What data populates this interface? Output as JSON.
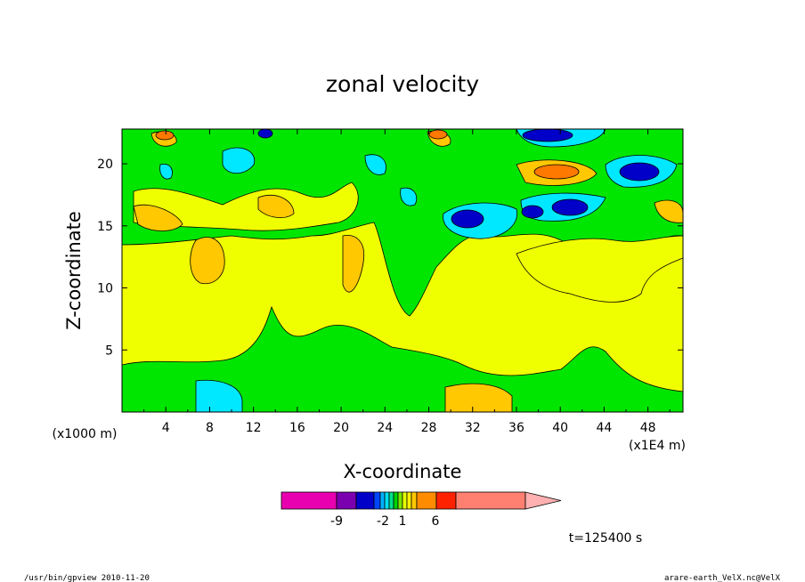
{
  "chart_data": {
    "type": "heatmap",
    "title": "zonal velocity",
    "xlabel": "X-coordinate",
    "ylabel": "Z-coordinate",
    "x_unit": "(x1E4 m)",
    "y_unit": "(x1000 m)",
    "x_ticks": [
      "4",
      "8",
      "12",
      "16",
      "20",
      "24",
      "28",
      "32",
      "36",
      "40",
      "44",
      "48"
    ],
    "y_ticks": [
      "5",
      "10",
      "15",
      "20"
    ],
    "xlim": [
      0,
      51.2
    ],
    "ylim": [
      0,
      22.8
    ],
    "time_label": "t=125400 s",
    "colorbar": {
      "colors": [
        "#e800b0",
        "#7a00b0",
        "#0000c8",
        "#0045ff",
        "#00b0ff",
        "#00e0f0",
        "#00e08c",
        "#00d200",
        "#78e600",
        "#e6ff00",
        "#fff000",
        "#ffc800",
        "#ff8c00",
        "#ff2200",
        "#ff7f70",
        "#ffb0b0"
      ],
      "labels": [
        "-9",
        "-2",
        "1",
        "6"
      ]
    },
    "levels": {
      "strong_neg": "#0000c8",
      "neg": "#00e8ff",
      "weak_neg": "#00e600",
      "weak_pos": "#f0ff00",
      "pos": "#ffc800",
      "strong_pos": "#ff8c00"
    }
  },
  "footer": {
    "left": "/usr/bin/gpview   2010-11-20",
    "right": "arare-earth_VelX.nc@VelX"
  }
}
